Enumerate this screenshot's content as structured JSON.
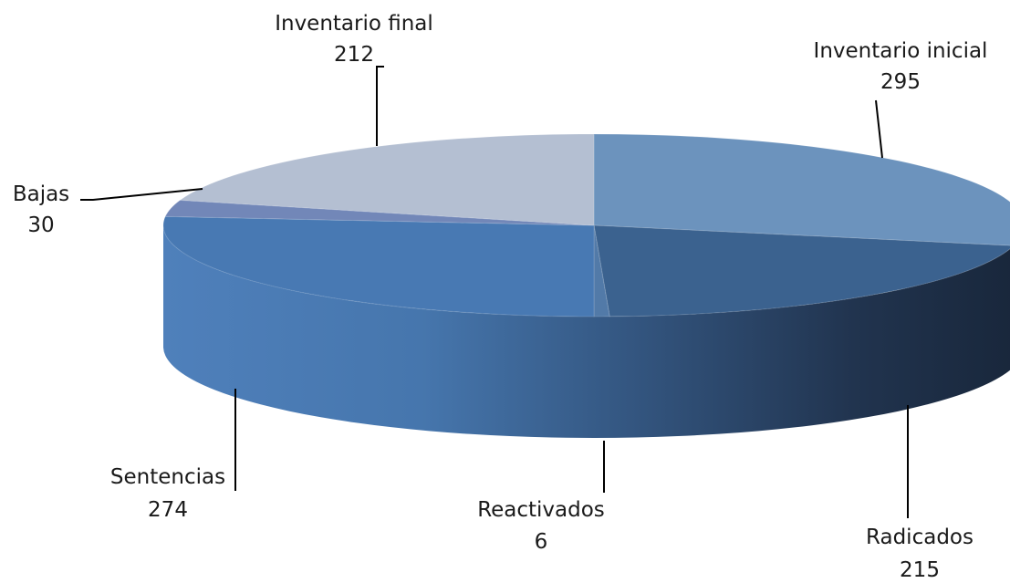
{
  "chart_data": {
    "type": "pie",
    "style": "3d",
    "categories": [
      "Inventario inicial",
      "Radicados",
      "Reactivados",
      "Sentencias",
      "Bajas",
      "Inventario final"
    ],
    "values": [
      295,
      215,
      6,
      274,
      30,
      212
    ],
    "labels": [
      {
        "name": "Inventario inicial",
        "value": "295"
      },
      {
        "name": "Radicados",
        "value": "215"
      },
      {
        "name": "Reactivados",
        "value": "6"
      },
      {
        "name": "Sentencias",
        "value": "274"
      },
      {
        "name": "Bajas",
        "value": "30"
      },
      {
        "name": "Inventario final",
        "value": "212"
      }
    ],
    "colors": {
      "top": [
        "#6c93bd",
        "#3b628f",
        "#527aa8",
        "#4879b3",
        "#7287b8",
        "#b4bfd2"
      ],
      "side_dark": "#1c2c44",
      "side_light": "#4c7db9"
    },
    "legend": "none"
  }
}
